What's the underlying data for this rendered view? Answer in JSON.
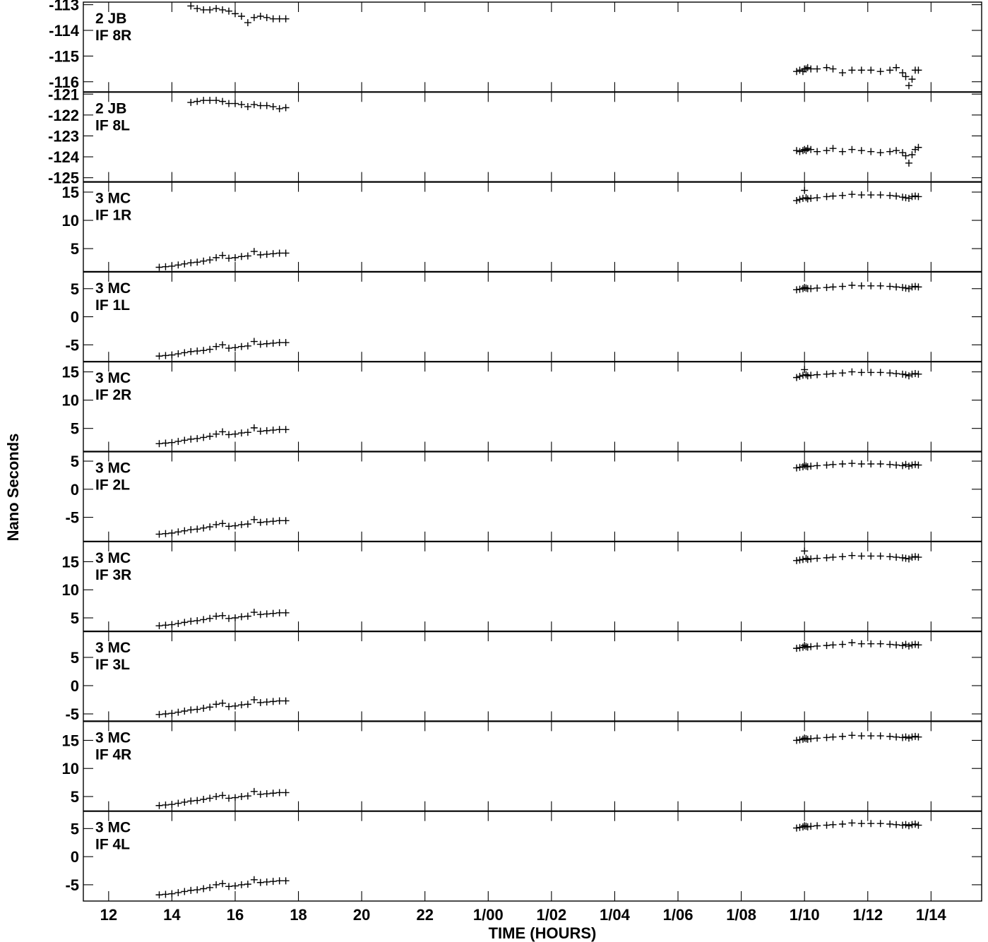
{
  "chart_data": {
    "type": "scatter",
    "ylabel": "Nano Seconds",
    "xlabel": "TIME (HOURS)",
    "x_unit": "hours (0 = 00:00 of day 0; 24 = 1/00)",
    "x_range": [
      11.2,
      39.6
    ],
    "x_ticks": [
      {
        "v": 12,
        "label": "12"
      },
      {
        "v": 14,
        "label": "14"
      },
      {
        "v": 16,
        "label": "16"
      },
      {
        "v": 18,
        "label": "18"
      },
      {
        "v": 20,
        "label": "20"
      },
      {
        "v": 22,
        "label": "22"
      },
      {
        "v": 24,
        "label": "1/00"
      },
      {
        "v": 26,
        "label": "1/02"
      },
      {
        "v": 28,
        "label": "1/04"
      },
      {
        "v": 30,
        "label": "1/06"
      },
      {
        "v": 32,
        "label": "1/08"
      },
      {
        "v": 34,
        "label": "1/10"
      },
      {
        "v": 36,
        "label": "1/12"
      },
      {
        "v": 38,
        "label": "1/14"
      }
    ],
    "panels": [
      {
        "label": [
          "2 JB",
          "IF 8R"
        ],
        "ylim": [
          -116.4,
          -112.9
        ],
        "yticks": [
          -113,
          -114,
          -115,
          -116
        ],
        "x": [
          14.6,
          14.8,
          15.0,
          15.2,
          15.4,
          15.6,
          15.8,
          16.0,
          16.2,
          16.4,
          16.6,
          16.8,
          17.0,
          17.2,
          17.4,
          17.6,
          33.75,
          33.85,
          33.95,
          34.0,
          34.05,
          34.1,
          34.2,
          34.4,
          34.7,
          34.9,
          35.2,
          35.5,
          35.8,
          36.1,
          36.4,
          36.7,
          36.9,
          37.1,
          37.2,
          37.3,
          37.4,
          37.5,
          37.6
        ],
        "y": [
          -113.05,
          -113.15,
          -113.2,
          -113.2,
          -113.15,
          -113.2,
          -113.25,
          -113.35,
          -113.45,
          -113.7,
          -113.5,
          -113.45,
          -113.5,
          -113.55,
          -113.55,
          -113.55,
          -115.6,
          -115.55,
          -115.6,
          -115.5,
          -115.5,
          -115.45,
          -115.5,
          -115.5,
          -115.45,
          -115.5,
          -115.65,
          -115.55,
          -115.55,
          -115.55,
          -115.6,
          -115.55,
          -115.45,
          -115.65,
          -115.8,
          -116.15,
          -115.9,
          -115.55,
          -115.55
        ]
      },
      {
        "label": [
          "2 JB",
          "IF 8L"
        ],
        "ylim": [
          -125.2,
          -120.9
        ],
        "yticks": [
          -121,
          -122,
          -123,
          -124,
          -125
        ],
        "x": [
          14.6,
          14.8,
          15.0,
          15.2,
          15.4,
          15.6,
          15.8,
          16.0,
          16.2,
          16.4,
          16.6,
          16.8,
          17.0,
          17.2,
          17.4,
          17.6,
          33.75,
          33.85,
          33.95,
          34.0,
          34.05,
          34.1,
          34.2,
          34.4,
          34.7,
          34.9,
          35.2,
          35.5,
          35.8,
          36.1,
          36.4,
          36.7,
          36.9,
          37.1,
          37.2,
          37.3,
          37.4,
          37.5,
          37.6
        ],
        "y": [
          -121.4,
          -121.35,
          -121.3,
          -121.3,
          -121.3,
          -121.35,
          -121.45,
          -121.45,
          -121.5,
          -121.6,
          -121.5,
          -121.55,
          -121.55,
          -121.6,
          -121.7,
          -121.65,
          -123.7,
          -123.75,
          -123.7,
          -123.65,
          -123.7,
          -123.6,
          -123.65,
          -123.75,
          -123.7,
          -123.6,
          -123.75,
          -123.65,
          -123.7,
          -123.75,
          -123.8,
          -123.75,
          -123.7,
          -123.8,
          -123.95,
          -124.3,
          -123.9,
          -123.65,
          -123.55
        ]
      },
      {
        "label": [
          "3 MC",
          "IF 1R"
        ],
        "ylim": [
          0.9,
          16.8
        ],
        "yticks": [
          15,
          10,
          5
        ],
        "x": [
          13.6,
          13.8,
          14.0,
          14.2,
          14.4,
          14.6,
          14.8,
          15.0,
          15.2,
          15.4,
          15.6,
          15.8,
          16.0,
          16.2,
          16.4,
          16.6,
          16.8,
          17.0,
          17.2,
          17.4,
          17.6,
          33.75,
          33.85,
          33.95,
          34.0,
          34.05,
          34.1,
          34.2,
          34.4,
          34.7,
          34.9,
          35.2,
          35.5,
          35.8,
          36.1,
          36.4,
          36.7,
          36.9,
          37.1,
          37.2,
          37.3,
          37.4,
          37.5,
          37.6
        ],
        "y": [
          1.7,
          1.8,
          1.9,
          2.1,
          2.3,
          2.5,
          2.6,
          2.8,
          3.0,
          3.4,
          3.8,
          3.3,
          3.4,
          3.6,
          3.7,
          4.5,
          3.9,
          4.0,
          4.1,
          4.2,
          4.2,
          13.5,
          13.7,
          13.9,
          15.3,
          14.0,
          13.8,
          13.9,
          14.0,
          14.2,
          14.3,
          14.4,
          14.6,
          14.5,
          14.5,
          14.5,
          14.4,
          14.3,
          14.1,
          14.0,
          13.9,
          14.2,
          14.3,
          14.2
        ]
      },
      {
        "label": [
          "3 MC",
          "IF 1L"
        ],
        "ylim": [
          -8.0,
          8.0
        ],
        "yticks": [
          5,
          0,
          -5
        ],
        "x": [
          13.6,
          13.8,
          14.0,
          14.2,
          14.4,
          14.6,
          14.8,
          15.0,
          15.2,
          15.4,
          15.6,
          15.8,
          16.0,
          16.2,
          16.4,
          16.6,
          16.8,
          17.0,
          17.2,
          17.4,
          17.6,
          33.75,
          33.85,
          33.95,
          34.0,
          34.05,
          34.1,
          34.2,
          34.4,
          34.7,
          34.9,
          35.2,
          35.5,
          35.8,
          36.1,
          36.4,
          36.7,
          36.9,
          37.1,
          37.2,
          37.3,
          37.4,
          37.5,
          37.6
        ],
        "y": [
          -7.0,
          -6.9,
          -6.8,
          -6.6,
          -6.4,
          -6.2,
          -6.1,
          -6.0,
          -5.8,
          -5.3,
          -5.0,
          -5.6,
          -5.5,
          -5.3,
          -5.2,
          -4.4,
          -4.9,
          -4.8,
          -4.7,
          -4.6,
          -4.6,
          4.8,
          4.9,
          5.0,
          5.2,
          5.1,
          5.0,
          5.0,
          5.1,
          5.2,
          5.3,
          5.4,
          5.6,
          5.5,
          5.5,
          5.5,
          5.4,
          5.3,
          5.2,
          5.1,
          5.0,
          5.3,
          5.4,
          5.3
        ]
      },
      {
        "label": [
          "3 MC",
          "IF 2R"
        ],
        "ylim": [
          0.9,
          16.8
        ],
        "yticks": [
          15,
          10,
          5
        ],
        "x": [
          13.6,
          13.8,
          14.0,
          14.2,
          14.4,
          14.6,
          14.8,
          15.0,
          15.2,
          15.4,
          15.6,
          15.8,
          16.0,
          16.2,
          16.4,
          16.6,
          16.8,
          17.0,
          17.2,
          17.4,
          17.6,
          33.75,
          33.85,
          33.95,
          34.0,
          34.05,
          34.1,
          34.2,
          34.4,
          34.7,
          34.9,
          35.2,
          35.5,
          35.8,
          36.1,
          36.4,
          36.7,
          36.9,
          37.1,
          37.2,
          37.3,
          37.4,
          37.5,
          37.6
        ],
        "y": [
          2.3,
          2.4,
          2.5,
          2.7,
          2.9,
          3.1,
          3.2,
          3.4,
          3.6,
          4.0,
          4.4,
          3.9,
          4.0,
          4.2,
          4.3,
          5.1,
          4.5,
          4.6,
          4.7,
          4.8,
          4.8,
          14.0,
          14.2,
          14.4,
          15.4,
          14.5,
          14.3,
          14.4,
          14.5,
          14.6,
          14.7,
          14.8,
          15.0,
          14.9,
          14.9,
          14.9,
          14.8,
          14.7,
          14.6,
          14.5,
          14.3,
          14.6,
          14.7,
          14.6
        ]
      },
      {
        "label": [
          "3 MC",
          "IF 2L"
        ],
        "ylim": [
          -9.3,
          6.7
        ],
        "yticks": [
          5,
          0,
          -5
        ],
        "x": [
          13.6,
          13.8,
          14.0,
          14.2,
          14.4,
          14.6,
          14.8,
          15.0,
          15.2,
          15.4,
          15.6,
          15.8,
          16.0,
          16.2,
          16.4,
          16.6,
          16.8,
          17.0,
          17.2,
          17.4,
          17.6,
          33.75,
          33.85,
          33.95,
          34.0,
          34.05,
          34.1,
          34.2,
          34.4,
          34.7,
          34.9,
          35.2,
          35.5,
          35.8,
          36.1,
          36.4,
          36.7,
          36.9,
          37.1,
          37.2,
          37.3,
          37.4,
          37.5,
          37.6
        ],
        "y": [
          -8.0,
          -7.9,
          -7.8,
          -7.6,
          -7.4,
          -7.2,
          -7.1,
          -6.9,
          -6.7,
          -6.3,
          -6.1,
          -6.6,
          -6.5,
          -6.3,
          -6.2,
          -5.4,
          -5.9,
          -5.8,
          -5.7,
          -5.6,
          -5.6,
          3.8,
          3.9,
          4.0,
          4.3,
          4.1,
          4.0,
          4.1,
          4.2,
          4.3,
          4.4,
          4.5,
          4.6,
          4.5,
          4.5,
          4.5,
          4.4,
          4.3,
          4.2,
          4.4,
          4.1,
          4.3,
          4.4,
          4.3
        ]
      },
      {
        "label": [
          "3 MC",
          "IF 3R"
        ],
        "ylim": [
          2.6,
          18.6
        ],
        "yticks": [
          15,
          10,
          5
        ],
        "x": [
          13.6,
          13.8,
          14.0,
          14.2,
          14.4,
          14.6,
          14.8,
          15.0,
          15.2,
          15.4,
          15.6,
          15.8,
          16.0,
          16.2,
          16.4,
          16.6,
          16.8,
          17.0,
          17.2,
          17.4,
          17.6,
          33.75,
          33.85,
          33.95,
          34.0,
          34.05,
          34.1,
          34.2,
          34.4,
          34.7,
          34.9,
          35.2,
          35.5,
          35.8,
          36.1,
          36.4,
          36.7,
          36.9,
          37.1,
          37.2,
          37.3,
          37.4,
          37.5,
          37.6
        ],
        "y": [
          3.6,
          3.7,
          3.8,
          4.0,
          4.2,
          4.4,
          4.5,
          4.7,
          4.9,
          5.3,
          5.4,
          4.9,
          5.0,
          5.2,
          5.3,
          6.0,
          5.6,
          5.7,
          5.8,
          5.9,
          5.9,
          15.2,
          15.3,
          15.4,
          16.9,
          15.6,
          15.4,
          15.5,
          15.6,
          15.7,
          15.8,
          15.9,
          16.1,
          16.0,
          16.0,
          16.0,
          15.9,
          15.8,
          15.7,
          15.6,
          15.5,
          15.8,
          15.9,
          15.8
        ]
      },
      {
        "label": [
          "3 MC",
          "IF 3L"
        ],
        "ylim": [
          -6.3,
          9.6
        ],
        "yticks": [
          5,
          0,
          -5
        ],
        "x": [
          13.6,
          13.8,
          14.0,
          14.2,
          14.4,
          14.6,
          14.8,
          15.0,
          15.2,
          15.4,
          15.6,
          15.8,
          16.0,
          16.2,
          16.4,
          16.6,
          16.8,
          17.0,
          17.2,
          17.4,
          17.6,
          33.75,
          33.85,
          33.95,
          34.0,
          34.05,
          34.1,
          34.2,
          34.4,
          34.7,
          34.9,
          35.2,
          35.5,
          35.8,
          36.1,
          36.4,
          36.7,
          36.9,
          37.1,
          37.2,
          37.3,
          37.4,
          37.5,
          37.6
        ],
        "y": [
          -5.1,
          -5.0,
          -4.9,
          -4.7,
          -4.5,
          -4.3,
          -4.2,
          -4.0,
          -3.8,
          -3.3,
          -3.1,
          -3.7,
          -3.6,
          -3.4,
          -3.3,
          -2.5,
          -3.0,
          -2.9,
          -2.8,
          -2.7,
          -2.7,
          6.6,
          6.7,
          6.8,
          7.1,
          6.9,
          6.8,
          6.9,
          7.0,
          7.1,
          7.2,
          7.3,
          7.6,
          7.4,
          7.4,
          7.4,
          7.3,
          7.2,
          7.1,
          7.3,
          7.0,
          7.2,
          7.3,
          7.2
        ]
      },
      {
        "label": [
          "3 MC",
          "IF 4R"
        ],
        "ylim": [
          2.4,
          18.4
        ],
        "yticks": [
          15,
          10,
          5
        ],
        "x": [
          13.6,
          13.8,
          14.0,
          14.2,
          14.4,
          14.6,
          14.8,
          15.0,
          15.2,
          15.4,
          15.6,
          15.8,
          16.0,
          16.2,
          16.4,
          16.6,
          16.8,
          17.0,
          17.2,
          17.4,
          17.6,
          33.75,
          33.85,
          33.95,
          34.0,
          34.05,
          34.1,
          34.2,
          34.4,
          34.7,
          34.9,
          35.2,
          35.5,
          35.8,
          36.1,
          36.4,
          36.7,
          36.9,
          37.1,
          37.2,
          37.3,
          37.4,
          37.5,
          37.6
        ],
        "y": [
          3.4,
          3.5,
          3.6,
          3.8,
          4.0,
          4.2,
          4.3,
          4.5,
          4.7,
          5.0,
          5.2,
          4.7,
          4.8,
          5.0,
          5.1,
          5.9,
          5.4,
          5.5,
          5.6,
          5.7,
          5.7,
          15.0,
          15.1,
          15.2,
          15.4,
          15.3,
          15.2,
          15.3,
          15.4,
          15.5,
          15.6,
          15.7,
          15.9,
          15.8,
          15.8,
          15.8,
          15.7,
          15.6,
          15.5,
          15.6,
          15.4,
          15.6,
          15.7,
          15.6
        ]
      },
      {
        "label": [
          "3 MC",
          "IF 4L"
        ],
        "ylim": [
          -7.9,
          8.1
        ],
        "yticks": [
          5,
          0,
          -5
        ],
        "x": [
          13.6,
          13.8,
          14.0,
          14.2,
          14.4,
          14.6,
          14.8,
          15.0,
          15.2,
          15.4,
          15.6,
          15.8,
          16.0,
          16.2,
          16.4,
          16.6,
          16.8,
          17.0,
          17.2,
          17.4,
          17.6,
          33.75,
          33.85,
          33.95,
          34.0,
          34.05,
          34.1,
          34.2,
          34.4,
          34.7,
          34.9,
          35.2,
          35.5,
          35.8,
          36.1,
          36.4,
          36.7,
          36.9,
          37.1,
          37.2,
          37.3,
          37.4,
          37.5,
          37.6
        ],
        "y": [
          -6.8,
          -6.7,
          -6.6,
          -6.4,
          -6.2,
          -6.0,
          -5.9,
          -5.7,
          -5.5,
          -5.0,
          -4.8,
          -5.3,
          -5.2,
          -5.0,
          -4.9,
          -4.1,
          -4.6,
          -4.5,
          -4.4,
          -4.3,
          -4.3,
          5.1,
          5.2,
          5.3,
          5.5,
          5.4,
          5.3,
          5.4,
          5.5,
          5.6,
          5.7,
          5.8,
          6.0,
          5.9,
          5.9,
          5.9,
          5.8,
          5.7,
          5.6,
          5.7,
          5.5,
          5.7,
          5.8,
          5.6
        ]
      }
    ]
  }
}
